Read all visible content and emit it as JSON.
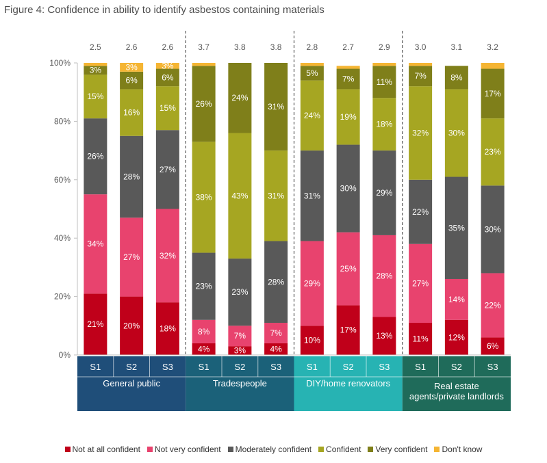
{
  "figure": {
    "title": "Figure 4: Confidence in ability to identify asbestos containing materials"
  },
  "chart_data": {
    "type": "bar",
    "stacked": true,
    "title": "Figure 4: Confidence in ability to identify asbestos containing materials",
    "ylim": [
      0,
      100
    ],
    "yticks": [
      "0%",
      "20%",
      "40%",
      "60%",
      "80%",
      "100%"
    ],
    "groups": [
      {
        "label": "General public",
        "color": "#1f4e79",
        "bars": [
          {
            "label": "S1",
            "mean": "2.5",
            "values": [
              21,
              34,
              26,
              15,
              3,
              1
            ]
          },
          {
            "label": "S2",
            "mean": "2.6",
            "values": [
              20,
              27,
              28,
              16,
              6,
              3
            ]
          },
          {
            "label": "S3",
            "mean": "2.6",
            "values": [
              18,
              32,
              27,
              15,
              6,
              3
            ]
          }
        ]
      },
      {
        "label": "Tradespeople",
        "color": "#1b6179",
        "bars": [
          {
            "label": "S1",
            "mean": "3.7",
            "values": [
              4,
              8,
              23,
              38,
              26,
              1
            ]
          },
          {
            "label": "S2",
            "mean": "3.8",
            "values": [
              3,
              7,
              23,
              43,
              24,
              1
            ]
          },
          {
            "label": "S3",
            "mean": "3.8",
            "values": [
              4,
              7,
              28,
              31,
              31,
              0
            ]
          }
        ]
      },
      {
        "label": "DIY/home renovators",
        "color": "#27b3b3",
        "bars": [
          {
            "label": "S1",
            "mean": "2.8",
            "values": [
              10,
              29,
              31,
              24,
              5,
              1
            ]
          },
          {
            "label": "S2",
            "mean": "2.7",
            "values": [
              17,
              25,
              30,
              19,
              7,
              1
            ]
          },
          {
            "label": "S3",
            "mean": "2.9",
            "values": [
              13,
              28,
              29,
              18,
              11,
              2
            ]
          }
        ]
      },
      {
        "label": "Real estate agents/private landlords",
        "color": "#1f6b5a",
        "bars": [
          {
            "label": "S1",
            "mean": "3.0",
            "values": [
              11,
              27,
              22,
              32,
              7,
              1
            ]
          },
          {
            "label": "S2",
            "mean": "3.1",
            "values": [
              12,
              14,
              35,
              30,
              8,
              0
            ]
          },
          {
            "label": "S3",
            "mean": "3.2",
            "values": [
              6,
              22,
              30,
              23,
              17,
              2
            ]
          }
        ]
      }
    ],
    "series": [
      {
        "name": "Not at all confident",
        "color": "#c0001a"
      },
      {
        "name": "Not very confident",
        "color": "#e8436e"
      },
      {
        "name": "Moderately confident",
        "color": "#595959"
      },
      {
        "name": "Confident",
        "color": "#a6a622"
      },
      {
        "name": "Very confident",
        "color": "#7f7f1a"
      },
      {
        "name": "Don't know",
        "color": "#f5b533"
      }
    ],
    "legend_position": "bottom",
    "grid": false
  }
}
